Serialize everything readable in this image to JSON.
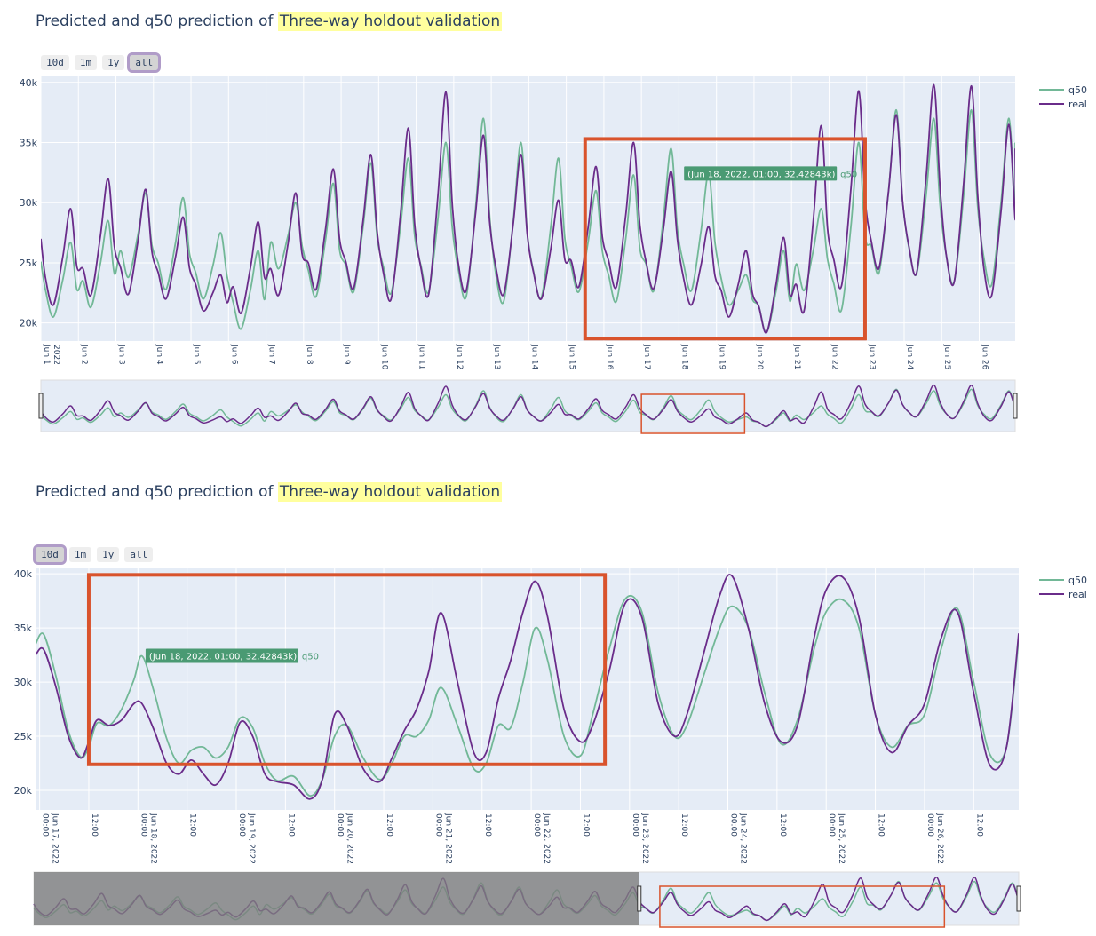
{
  "colors": {
    "q50": "#72b897",
    "real": "#6a2c8a",
    "plot_bg": "#e5ecf6",
    "grid": "#ffffff",
    "highlight_box": "#d9532c",
    "tooltip_bg": "#4a9a73",
    "title_highlight": "#ffff9e",
    "range_mask": "#7d7d7d"
  },
  "panels": [
    {
      "title_prefix": "Predicted and q50 prediction of",
      "title_highlight": "Three-way holdout validation",
      "range_buttons": [
        "10d",
        "1m",
        "1y",
        "all"
      ],
      "active_button": "all",
      "legend": [
        "q50",
        "real"
      ],
      "tooltip": {
        "text": "(Jun 18, 2022, 01:00, 32.42843k)",
        "series": "q50"
      }
    },
    {
      "title_prefix": "Predicted and q50 prediction of",
      "title_highlight": "Three-way holdout validation",
      "range_buttons": [
        "10d",
        "1m",
        "1y",
        "all"
      ],
      "active_button": "10d",
      "legend": [
        "q50",
        "real"
      ],
      "tooltip": {
        "text": "(Jun 18, 2022, 01:00, 32.42843k)",
        "series": "q50"
      }
    }
  ],
  "chart_data": [
    {
      "type": "line",
      "x_range": [
        "2022-06-01 00:00",
        "2022-06-26 23:00"
      ],
      "ylim": [
        18500,
        40500
      ],
      "y_ticks": [
        20000,
        25000,
        30000,
        35000,
        40000
      ],
      "y_tick_labels": [
        "20k",
        "25k",
        "30k",
        "35k",
        "40k"
      ],
      "x_ticks": [
        "2022-06-01",
        "2022-06-02",
        "2022-06-03",
        "2022-06-04",
        "2022-06-05",
        "2022-06-06",
        "2022-06-07",
        "2022-06-08",
        "2022-06-09",
        "2022-06-10",
        "2022-06-11",
        "2022-06-12",
        "2022-06-13",
        "2022-06-14",
        "2022-06-15",
        "2022-06-16",
        "2022-06-17",
        "2022-06-18",
        "2022-06-19",
        "2022-06-20",
        "2022-06-21",
        "2022-06-22",
        "2022-06-23",
        "2022-06-24",
        "2022-06-25",
        "2022-06-26"
      ],
      "x_tick_labels": [
        "Jun 1\n2022",
        "Jun 2",
        "Jun 3",
        "Jun 4",
        "Jun 5",
        "Jun 6",
        "Jun 7",
        "Jun 8",
        "Jun 9",
        "Jun 10",
        "Jun 11",
        "Jun 12",
        "Jun 13",
        "Jun 14",
        "Jun 15",
        "Jun 16",
        "Jun 17",
        "Jun 18",
        "Jun 19",
        "Jun 20",
        "Jun 21",
        "Jun 22",
        "Jun 23",
        "Jun 24",
        "Jun 25",
        "Jun 26"
      ],
      "grid": true,
      "legend_position": "top-right",
      "highlight_box": {
        "x0": "2022-06-15 12:00",
        "x1": "2022-06-22 23:00",
        "y0": 18700,
        "y1": 35300
      },
      "rangeslider_box": {
        "x0": "2022-06-17 00:00",
        "x1": "2022-06-19 18:00"
      },
      "series": [
        {
          "name": "q50",
          "x": [
            "2022-06-01 12:00",
            "2022-06-02 00:00",
            "2022-06-03 00:00",
            "2022-06-04 00:00",
            "2022-06-05 00:00",
            "2022-06-06 00:00",
            "2022-06-07 00:00",
            "2022-06-08 00:00",
            "2022-06-09 00:00",
            "2022-06-10 00:00",
            "2022-06-11 00:00",
            "2022-06-12 00:00",
            "2022-06-13 00:00",
            "2022-06-14 00:00",
            "2022-06-15 00:00",
            "2022-06-16 00:00",
            "2022-06-17 00:00",
            "2022-06-18 00:00",
            "2022-06-19 00:00",
            "2022-06-20 00:00",
            "2022-06-21 00:00",
            "2022-06-22 00:00",
            "2022-06-23 00:00",
            "2022-06-24 00:00",
            "2022-06-25 00:00",
            "2022-06-26 00:00"
          ],
          "low": [
            20500,
            21300,
            23800,
            22800,
            22000,
            19500,
            24500,
            22200,
            22600,
            22500,
            22600,
            22200,
            21800,
            22100,
            22600,
            21800,
            22700,
            22700,
            21500,
            19200,
            22700,
            21100,
            24200,
            24100,
            23400,
            23200
          ],
          "peak": [
            26700,
            28500,
            30800,
            30400,
            27500,
            26000,
            30000,
            31600,
            33300,
            33700,
            35000,
            37000,
            35000,
            33700,
            31000,
            32300,
            34500,
            32400,
            24000,
            26000,
            29500,
            35000,
            37700,
            37000,
            37700,
            37000
          ]
        },
        {
          "name": "real",
          "x": [
            "2022-06-01 12:00",
            "2022-06-02 00:00",
            "2022-06-03 00:00",
            "2022-06-04 00:00",
            "2022-06-05 00:00",
            "2022-06-06 00:00",
            "2022-06-07 00:00",
            "2022-06-08 00:00",
            "2022-06-09 00:00",
            "2022-06-10 00:00",
            "2022-06-11 00:00",
            "2022-06-12 00:00",
            "2022-06-13 00:00",
            "2022-06-14 00:00",
            "2022-06-15 00:00",
            "2022-06-16 00:00",
            "2022-06-17 00:00",
            "2022-06-18 00:00",
            "2022-06-19 00:00",
            "2022-06-20 00:00",
            "2022-06-21 00:00",
            "2022-06-22 00:00",
            "2022-06-23 00:00",
            "2022-06-24 00:00",
            "2022-06-25 00:00",
            "2022-06-26 00:00"
          ],
          "low": [
            21500,
            22300,
            22400,
            22000,
            21000,
            20800,
            22300,
            22800,
            22900,
            22000,
            22400,
            22700,
            22400,
            22000,
            23000,
            23000,
            22900,
            21500,
            20500,
            19200,
            21000,
            23100,
            24600,
            24200,
            23400,
            22300
          ],
          "peak": [
            29500,
            32000,
            31100,
            28800,
            24000,
            28400,
            30800,
            32800,
            34000,
            36200,
            39200,
            35600,
            34000,
            30200,
            33000,
            35000,
            32600,
            28000,
            26000,
            27100,
            36400,
            39300,
            37300,
            39800,
            39700,
            36500
          ]
        }
      ]
    },
    {
      "type": "line",
      "x_range": [
        "2022-06-16 23:00",
        "2022-06-26 23:00"
      ],
      "ylim": [
        18200,
        40500
      ],
      "y_ticks": [
        20000,
        25000,
        30000,
        35000,
        40000
      ],
      "y_tick_labels": [
        "20k",
        "25k",
        "30k",
        "35k",
        "40k"
      ],
      "x_ticks": [
        "2022-06-17 00:00",
        "2022-06-17 12:00",
        "2022-06-18 00:00",
        "2022-06-18 12:00",
        "2022-06-19 00:00",
        "2022-06-19 12:00",
        "2022-06-20 00:00",
        "2022-06-20 12:00",
        "2022-06-21 00:00",
        "2022-06-21 12:00",
        "2022-06-22 00:00",
        "2022-06-22 12:00",
        "2022-06-23 00:00",
        "2022-06-23 12:00",
        "2022-06-24 00:00",
        "2022-06-24 12:00",
        "2022-06-25 00:00",
        "2022-06-25 12:00",
        "2022-06-26 00:00",
        "2022-06-26 12:00"
      ],
      "x_tick_labels": [
        "00:00\nJun 17, 2022",
        "12:00",
        "00:00\nJun 18, 2022",
        "12:00",
        "00:00\nJun 19, 2022",
        "12:00",
        "00:00\nJun 20, 2022",
        "12:00",
        "00:00\nJun 21, 2022",
        "12:00",
        "00:00\nJun 22, 2022",
        "12:00",
        "00:00\nJun 23, 2022",
        "12:00",
        "00:00\nJun 24, 2022",
        "12:00",
        "00:00\nJun 25, 2022",
        "12:00",
        "00:00\nJun 26, 2022",
        "12:00"
      ],
      "grid": true,
      "legend_position": "top-right",
      "highlight_box": {
        "x0": "2022-06-17 12:00",
        "x1": "2022-06-22 18:00",
        "y0": 22400,
        "y1": 39900
      },
      "rangeslider_box": {
        "x0": "2022-06-17 12:00",
        "x1": "2022-06-25 00:00"
      },
      "rangeslider_mask": {
        "x0": "2022-06-01 00:00",
        "x1": "2022-06-16 23:00"
      },
      "series": [
        {
          "name": "q50",
          "x": [
            "2022-06-16 23:00",
            "2022-06-17 01:00",
            "2022-06-17 04:00",
            "2022-06-17 07:00",
            "2022-06-17 10:00",
            "2022-06-17 12:00",
            "2022-06-17 14:00",
            "2022-06-17 17:00",
            "2022-06-17 20:00",
            "2022-06-17 23:00",
            "2022-06-18 01:00",
            "2022-06-18 04:00",
            "2022-06-18 07:00",
            "2022-06-18 10:00",
            "2022-06-18 13:00",
            "2022-06-18 16:00",
            "2022-06-18 19:00",
            "2022-06-18 22:00",
            "2022-06-19 01:00",
            "2022-06-19 04:00",
            "2022-06-19 07:00",
            "2022-06-19 10:00",
            "2022-06-19 14:00",
            "2022-06-19 18:00",
            "2022-06-19 21:00",
            "2022-06-20 00:00",
            "2022-06-20 03:00",
            "2022-06-20 07:00",
            "2022-06-20 11:00",
            "2022-06-20 14:00",
            "2022-06-20 17:00",
            "2022-06-20 20:00",
            "2022-06-20 23:00",
            "2022-06-21 02:00",
            "2022-06-21 06:00",
            "2022-06-21 10:00",
            "2022-06-21 13:00",
            "2022-06-21 16:00",
            "2022-06-21 19:00",
            "2022-06-21 22:00",
            "2022-06-22 01:00",
            "2022-06-22 04:00",
            "2022-06-22 08:00",
            "2022-06-22 12:00",
            "2022-06-22 15:00",
            "2022-06-22 19:00",
            "2022-06-22 23:00",
            "2022-06-23 03:00",
            "2022-06-23 07:00",
            "2022-06-23 11:00",
            "2022-06-23 14:00",
            "2022-06-23 18:00",
            "2022-06-23 22:00",
            "2022-06-24 01:00",
            "2022-06-24 05:00",
            "2022-06-24 09:00",
            "2022-06-24 13:00",
            "2022-06-24 17:00",
            "2022-06-24 21:00",
            "2022-06-25 00:00",
            "2022-06-25 04:00",
            "2022-06-25 08:00",
            "2022-06-25 12:00",
            "2022-06-25 16:00",
            "2022-06-25 20:00",
            "2022-06-26 00:00",
            "2022-06-26 04:00",
            "2022-06-26 08:00",
            "2022-06-26 12:00",
            "2022-06-26 16:00",
            "2022-06-26 20:00",
            "2022-06-26 23:00"
          ],
          "y": [
            33500,
            34400,
            30500,
            25500,
            23100,
            24000,
            26200,
            26000,
            27500,
            30200,
            32400,
            29000,
            24800,
            22500,
            23700,
            24000,
            23000,
            24000,
            26700,
            25800,
            22500,
            20900,
            21300,
            19500,
            21000,
            25000,
            26000,
            23000,
            21000,
            22500,
            25000,
            25000,
            26500,
            29500,
            26000,
            22000,
            22500,
            26000,
            25800,
            30000,
            35000,
            32000,
            25000,
            23200,
            27000,
            33000,
            37700,
            36500,
            29000,
            25000,
            26000,
            30500,
            35000,
            37000,
            35000,
            29000,
            24300,
            26500,
            33000,
            36500,
            37600,
            35000,
            27000,
            24000,
            26000,
            27000,
            33000,
            36800,
            30000,
            23300,
            24000,
            34000
          ]
        },
        {
          "name": "real",
          "x": [
            "2022-06-16 23:00",
            "2022-06-17 01:00",
            "2022-06-17 04:00",
            "2022-06-17 07:00",
            "2022-06-17 10:00",
            "2022-06-17 12:00",
            "2022-06-17 14:00",
            "2022-06-17 17:00",
            "2022-06-17 20:00",
            "2022-06-17 23:00",
            "2022-06-18 01:00",
            "2022-06-18 04:00",
            "2022-06-18 07:00",
            "2022-06-18 10:00",
            "2022-06-18 13:00",
            "2022-06-18 16:00",
            "2022-06-18 19:00",
            "2022-06-18 22:00",
            "2022-06-19 01:00",
            "2022-06-19 04:00",
            "2022-06-19 07:00",
            "2022-06-19 10:00",
            "2022-06-19 14:00",
            "2022-06-19 18:00",
            "2022-06-19 21:00",
            "2022-06-20 00:00",
            "2022-06-20 03:00",
            "2022-06-20 07:00",
            "2022-06-20 11:00",
            "2022-06-20 14:00",
            "2022-06-20 17:00",
            "2022-06-20 20:00",
            "2022-06-20 23:00",
            "2022-06-21 02:00",
            "2022-06-21 06:00",
            "2022-06-21 10:00",
            "2022-06-21 13:00",
            "2022-06-21 16:00",
            "2022-06-21 19:00",
            "2022-06-21 22:00",
            "2022-06-22 01:00",
            "2022-06-22 04:00",
            "2022-06-22 08:00",
            "2022-06-22 12:00",
            "2022-06-22 15:00",
            "2022-06-22 19:00",
            "2022-06-22 23:00",
            "2022-06-23 03:00",
            "2022-06-23 07:00",
            "2022-06-23 11:00",
            "2022-06-23 14:00",
            "2022-06-23 18:00",
            "2022-06-23 22:00",
            "2022-06-24 01:00",
            "2022-06-24 05:00",
            "2022-06-24 09:00",
            "2022-06-24 13:00",
            "2022-06-24 17:00",
            "2022-06-24 21:00",
            "2022-06-25 00:00",
            "2022-06-25 04:00",
            "2022-06-25 08:00",
            "2022-06-25 12:00",
            "2022-06-25 16:00",
            "2022-06-25 20:00",
            "2022-06-26 00:00",
            "2022-06-26 04:00",
            "2022-06-26 08:00",
            "2022-06-26 12:00",
            "2022-06-26 16:00",
            "2022-06-26 20:00",
            "2022-06-26 23:00"
          ],
          "y": [
            32500,
            33000,
            29500,
            25000,
            23000,
            24500,
            26500,
            26000,
            26500,
            28000,
            28000,
            25500,
            22500,
            21500,
            22800,
            21500,
            20500,
            22500,
            26300,
            25000,
            21500,
            20800,
            20500,
            19200,
            21000,
            27000,
            26000,
            22000,
            20800,
            23000,
            25500,
            27500,
            31000,
            36400,
            30000,
            23500,
            23500,
            28500,
            32000,
            36500,
            39300,
            36000,
            27500,
            24500,
            26000,
            31000,
            37300,
            36000,
            28000,
            25000,
            27000,
            32500,
            38000,
            39800,
            35000,
            28000,
            24500,
            26000,
            34000,
            38500,
            39700,
            36000,
            27000,
            23500,
            26000,
            28000,
            34000,
            36500,
            29000,
            22300,
            24000,
            34500
          ]
        }
      ]
    }
  ]
}
